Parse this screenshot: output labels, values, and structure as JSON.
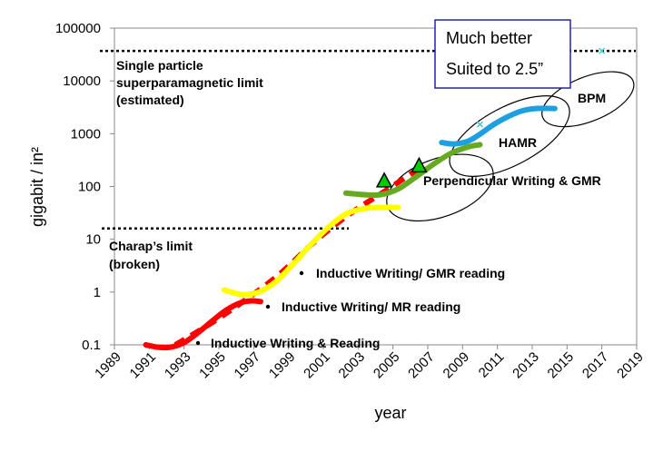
{
  "chart_data": {
    "type": "line",
    "y_scale": "log",
    "ylim": [
      0.1,
      100000
    ],
    "xlim": [
      1989,
      2019
    ],
    "ylabel": "gigabit / in²",
    "xlabel": "year",
    "x_ticks": [
      "1989",
      "1991",
      "1993",
      "1995",
      "1997",
      "1999",
      "2001",
      "2003",
      "2005",
      "2007",
      "2009",
      "2011",
      "2013",
      "2015",
      "2017",
      "2019"
    ],
    "y_ticks": [
      "100000",
      "10000",
      "1000",
      "100",
      "10",
      "1",
      "0.1"
    ],
    "limits": [
      {
        "name": "Single particle superparamagnetic limit (estimated)",
        "value": 37000,
        "label_lines": [
          "Single particle",
          "superparamagnetic limit",
          "(estimated)"
        ]
      },
      {
        "name": "Charap's limit (broken)",
        "value": 16,
        "label_lines": [
          "Charap’s limit",
          "(broken)"
        ]
      }
    ],
    "series": [
      {
        "name": "",
        "color": "#ff0000",
        "style": "solid",
        "x": [
          1990.8,
          1991.5,
          1992.2,
          1993.0,
          1993.8,
          1994.6,
          1995.4,
          1996.2,
          1996.8,
          1997.4
        ],
        "y": [
          0.1,
          0.09,
          0.09,
          0.11,
          0.17,
          0.28,
          0.45,
          0.62,
          0.68,
          0.66
        ]
      },
      {
        "name": "",
        "color": "#ff0000",
        "style": "dashed",
        "x": [
          1992.5,
          1994.5,
          1996.5,
          1998.5,
          2000.5,
          2002.5,
          2004.5,
          2006.5
        ],
        "y": [
          0.1,
          0.25,
          0.7,
          2.2,
          9,
          30,
          80,
          220
        ]
      },
      {
        "name": "",
        "color": "#ffff00",
        "style": "solid",
        "x": [
          1995.3,
          1996.3,
          1997.3,
          1998.3,
          1999.3,
          2000.3,
          2001.3,
          2002.3,
          2003.3,
          2004.3,
          2005.3
        ],
        "y": [
          1.1,
          0.9,
          1.0,
          1.6,
          3.5,
          8,
          17,
          30,
          38,
          40,
          40
        ]
      },
      {
        "name": "",
        "color": "#66aa22",
        "style": "solid",
        "x": [
          2002.3,
          2003.3,
          2004.3,
          2005.3,
          2006.3,
          2007.3,
          2008.3,
          2009.3,
          2010.0
        ],
        "y": [
          75,
          70,
          70,
          90,
          150,
          260,
          420,
          560,
          620
        ]
      },
      {
        "name": "",
        "color": "#1ea0e0",
        "style": "solid",
        "x": [
          2007.8,
          2008.5,
          2009.3,
          2010.0,
          2010.8,
          2011.6,
          2012.4,
          2013.2,
          2014.3
        ],
        "y": [
          680,
          640,
          720,
          980,
          1500,
          2100,
          2700,
          3000,
          3000
        ]
      }
    ],
    "markers": [
      {
        "kind": "triangle",
        "x": 2004.5,
        "y": 125,
        "color": "#00cc00"
      },
      {
        "kind": "triangle",
        "x": 2006.5,
        "y": 240,
        "color": "#00cc00"
      },
      {
        "kind": "cross",
        "x": 2010.0,
        "y": 1500,
        "color": "#44cccc"
      },
      {
        "kind": "cross",
        "x": 2017.0,
        "y": 37000,
        "color": "#44cccc"
      }
    ],
    "regions": [
      {
        "label": "Perpendicular Writing & GMR",
        "cx": 2007.7,
        "cy": 95,
        "rx_years": 3.2,
        "ry_decades": 0.55,
        "rotate": -20
      },
      {
        "label": "HAMR",
        "cx": 2011.7,
        "cy": 900,
        "rx_years": 3.8,
        "ry_decades": 0.55,
        "rotate": -28
      },
      {
        "label": "BPM",
        "cx": 2016.2,
        "cy": 4500,
        "rx_years": 2.8,
        "ry_decades": 0.42,
        "rotate": -22
      }
    ],
    "annotations": [
      {
        "text": "Inductive Writing/ GMR reading",
        "bullet": true
      },
      {
        "text": "Inductive Writing/ MR reading",
        "bullet": true
      },
      {
        "text": "Inductive Writing & Reading",
        "bullet": true
      },
      {
        "text": "Perpendicular Writing & GMR",
        "bullet": false
      },
      {
        "text": "HAMR",
        "bullet": false
      },
      {
        "text": "BPM",
        "bullet": false
      }
    ],
    "callout_lines": [
      "Much better",
      "Suited to 2.5”"
    ]
  }
}
